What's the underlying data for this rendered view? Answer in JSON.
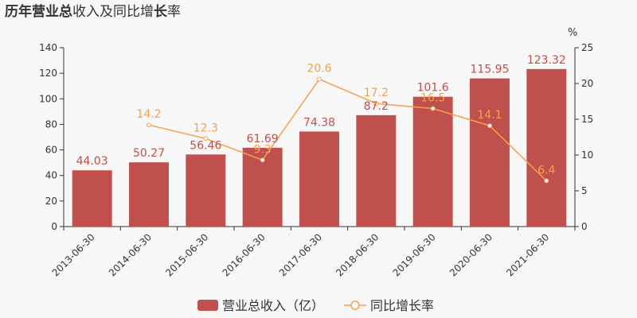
{
  "title": {
    "p1": "历年",
    "p2": "营业总",
    "p3": "收入及同比增",
    "p4": "长",
    "p5": "率"
  },
  "y2_unit": "%",
  "legend": {
    "bar": "营业总收入（亿）",
    "line": "同比增长率"
  },
  "chart_data": {
    "type": "bar",
    "categories": [
      "2013-06-30",
      "2014-06-30",
      "2015-06-30",
      "2016-06-30",
      "2017-06-30",
      "2018-06-30",
      "2019-06-30",
      "2020-06-30",
      "2021-06-30"
    ],
    "series": [
      {
        "name": "营业总收入（亿）",
        "type": "bar",
        "axis": "left",
        "values": [
          44.03,
          50.27,
          56.46,
          61.69,
          74.38,
          87.2,
          101.6,
          115.95,
          123.32
        ],
        "labels": [
          "44.03",
          "50.27",
          "56.46",
          "61.69",
          "74.38",
          "87.2",
          "101.6",
          "115.95",
          "123.32"
        ]
      },
      {
        "name": "同比增长率",
        "type": "line",
        "axis": "right",
        "values": [
          null,
          14.2,
          12.3,
          9.3,
          20.6,
          17.2,
          16.5,
          14.1,
          6.4
        ],
        "labels": [
          "",
          "14.2",
          "12.3",
          "9.3",
          "20.6",
          "17.2",
          "16.5",
          "14.1",
          "6.4"
        ]
      }
    ],
    "y_left": {
      "min": 0,
      "max": 140,
      "ticks": [
        0,
        20,
        40,
        60,
        80,
        100,
        120,
        140
      ]
    },
    "y_right": {
      "min": 0,
      "max": 25,
      "ticks": [
        0,
        5,
        10,
        15,
        20,
        25
      ]
    },
    "colors": {
      "bar": "#c0504d",
      "line": "#f4a04e"
    },
    "grid": false,
    "legend_position": "bottom-center"
  }
}
